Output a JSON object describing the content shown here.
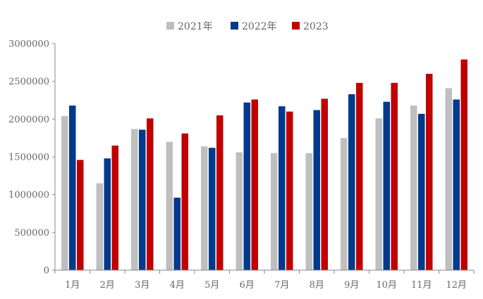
{
  "chart_data": {
    "type": "bar",
    "title": "",
    "xlabel": "",
    "ylabel": "",
    "categories": [
      "1月",
      "2月",
      "3月",
      "4月",
      "5月",
      "6月",
      "7月",
      "8月",
      "9月",
      "10月",
      "11月",
      "12月"
    ],
    "series": [
      {
        "name": "2021年",
        "color": "#bfbfbf",
        "values": [
          2040000,
          1150000,
          1870000,
          1700000,
          1640000,
          1560000,
          1550000,
          1550000,
          1750000,
          2010000,
          2180000,
          2410000
        ]
      },
      {
        "name": "2022年",
        "color": "#003a8c",
        "values": [
          2180000,
          1480000,
          1860000,
          960000,
          1620000,
          2220000,
          2170000,
          2120000,
          2330000,
          2230000,
          2070000,
          2260000
        ]
      },
      {
        "name": "2023",
        "color": "#c00000",
        "values": [
          1460000,
          1650000,
          2010000,
          1810000,
          2050000,
          2260000,
          2100000,
          2270000,
          2480000,
          2480000,
          2600000,
          2790000
        ]
      }
    ],
    "ylim": [
      0,
      3000000
    ],
    "yticks": [
      "0",
      "500000",
      "1000000",
      "1500000",
      "2000000",
      "2500000",
      "3000000"
    ],
    "grid": false,
    "legend_position": "top-center"
  }
}
